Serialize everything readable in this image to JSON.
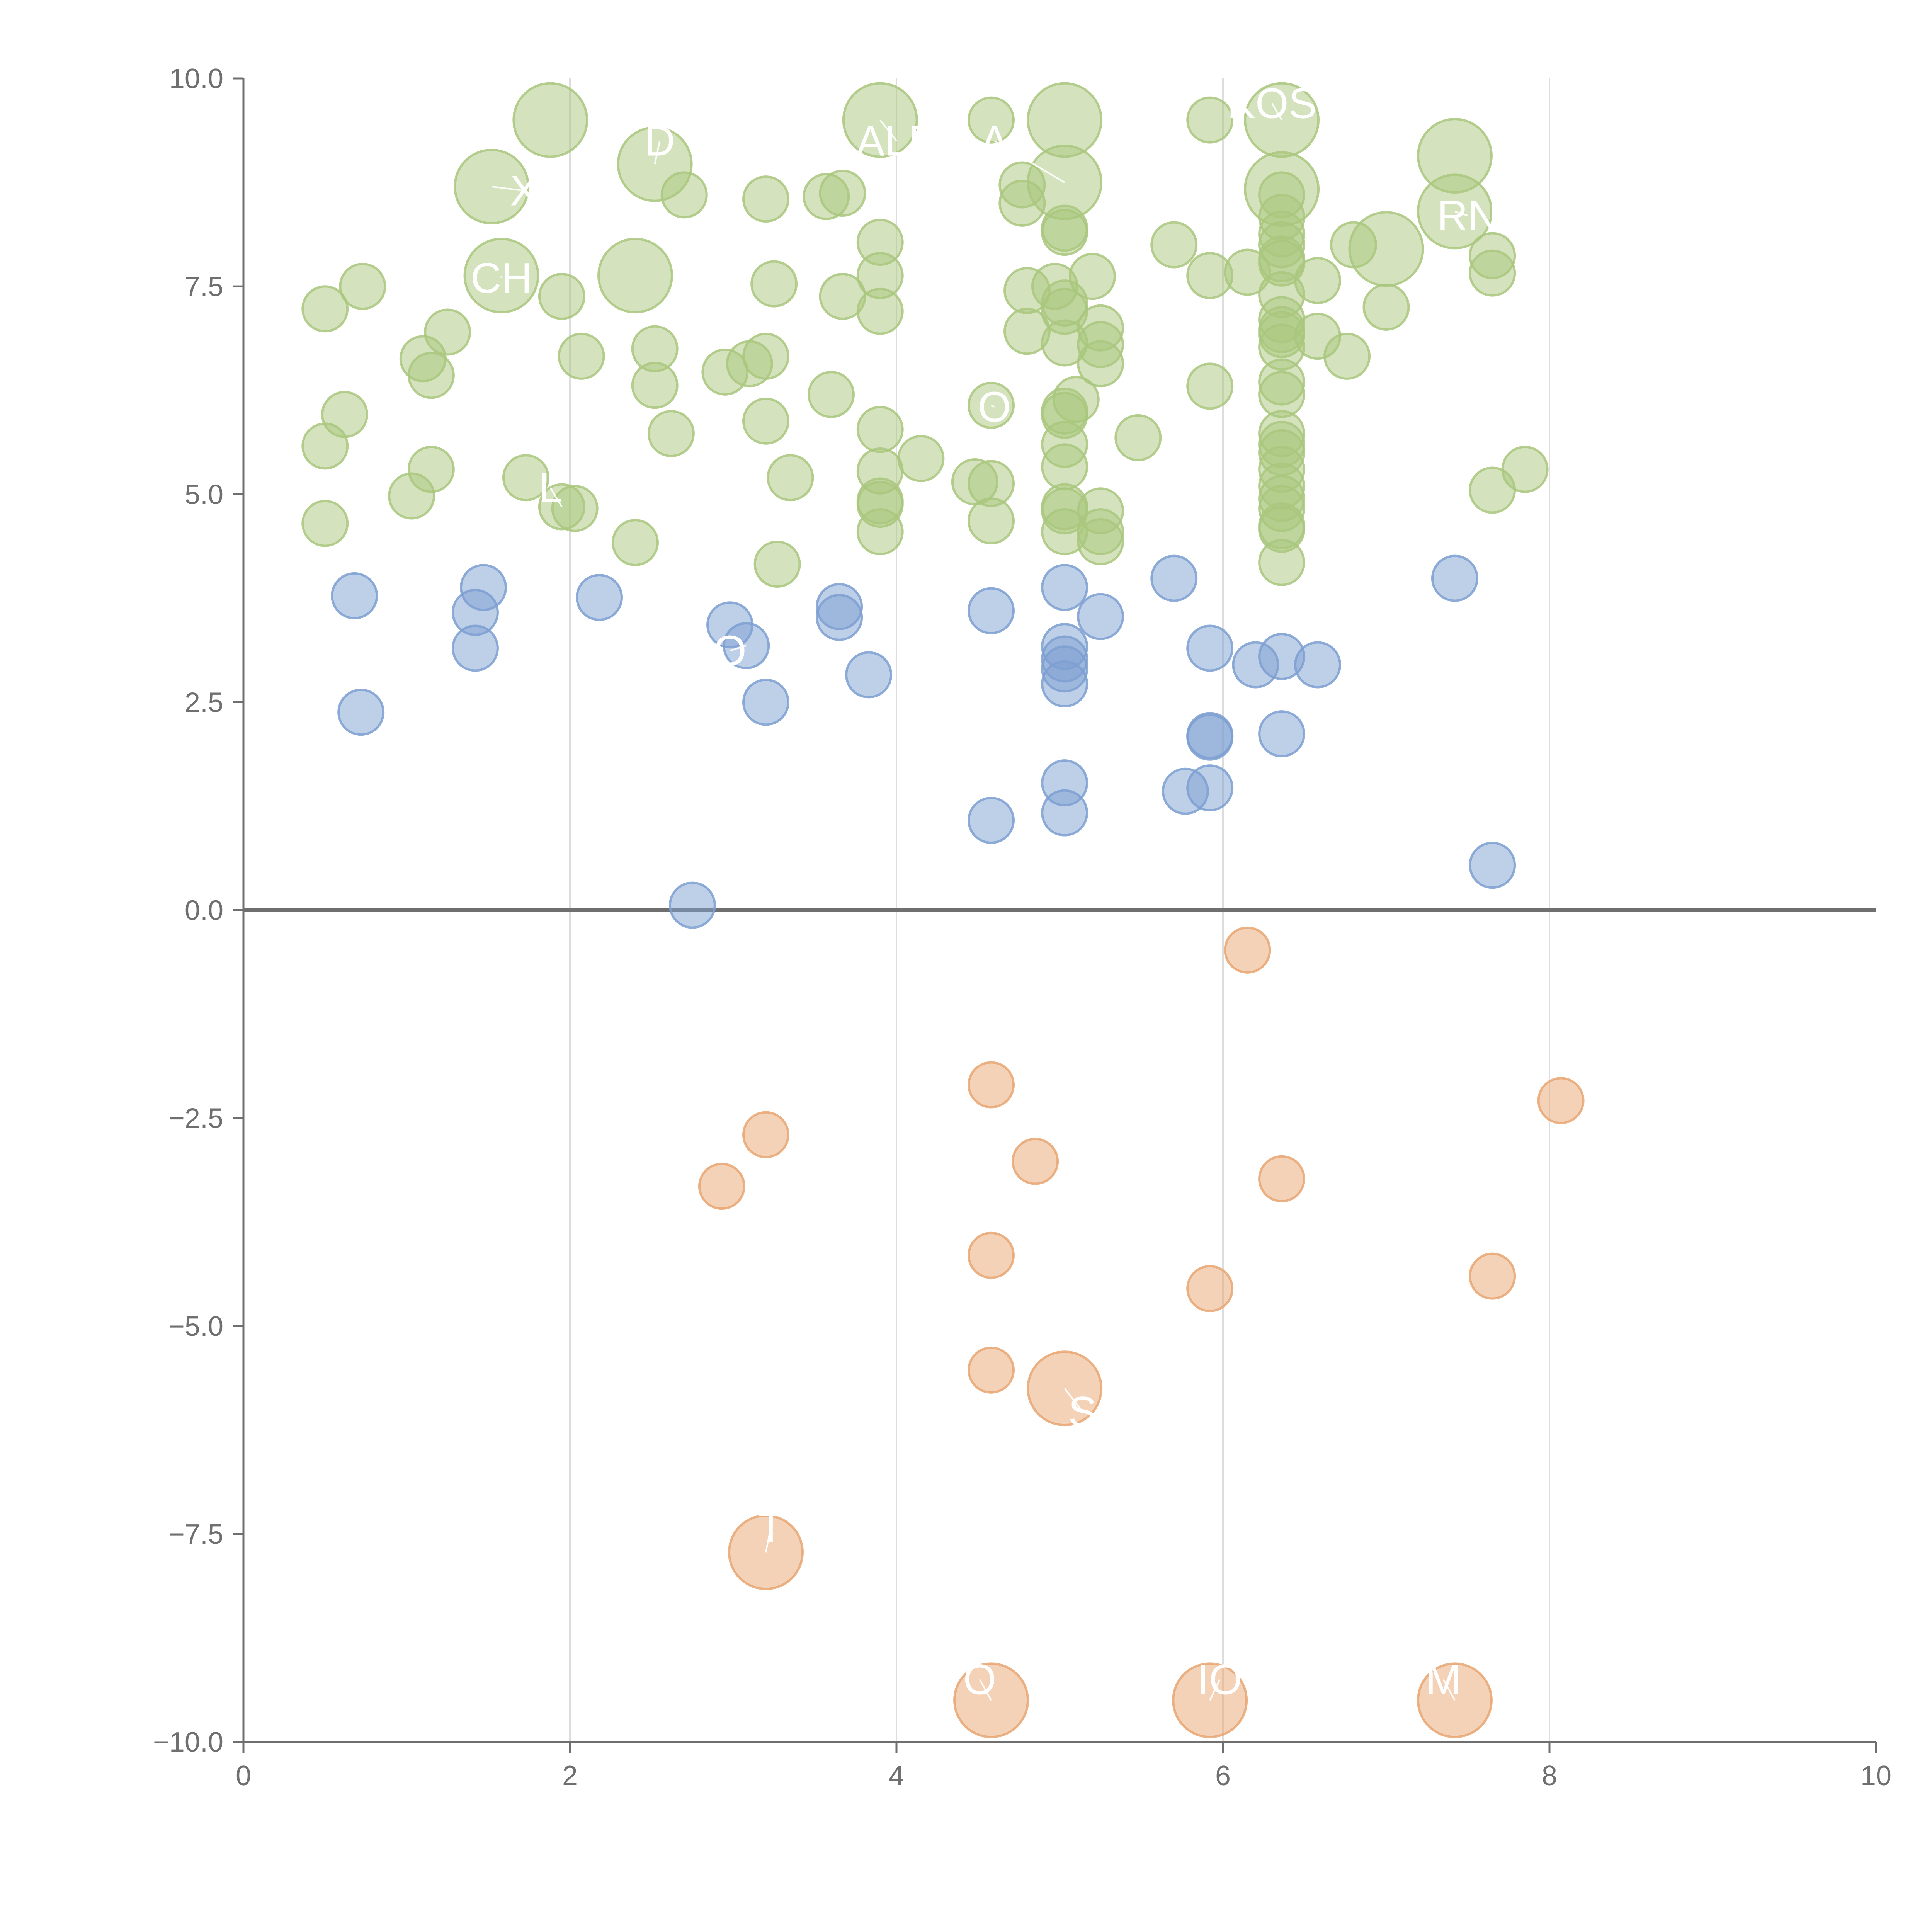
{
  "chart_data": {
    "type": "scatter",
    "title": "",
    "xlabel": "",
    "ylabel": "",
    "xlim": [
      0,
      10
    ],
    "ylim": [
      -10,
      10
    ],
    "x_ticks": [
      0,
      2,
      4,
      6,
      8,
      10
    ],
    "x_tick_labels": [
      "0",
      "2",
      "4",
      "6",
      "8",
      "10"
    ],
    "y_ticks": [
      10,
      7.5,
      5,
      2.5,
      0,
      -2.5,
      -5,
      -7.5,
      -10
    ],
    "y_tick_labels": [
      "10.0",
      "7.5",
      "5.0",
      "2.5",
      "0.0",
      "−2.5",
      "−5.0",
      "−7.5",
      "−10.0"
    ],
    "grid": {
      "vertical": true,
      "horizontal": false
    },
    "zero_line": true,
    "legend": "none",
    "colors": {
      "green": "#a9c77e",
      "blue": "#7d9fd1",
      "orange": "#e8a671",
      "axis": "#6f6f6f",
      "grid": "#dddddd",
      "label": "#ffffff"
    },
    "series": [
      {
        "color_key": "green",
        "points": [
          [
            1.88,
            9.5,
            2
          ],
          [
            3.9,
            9.5,
            2
          ],
          [
            4.58,
            9.5,
            0
          ],
          [
            5.03,
            9.5,
            2
          ],
          [
            5.92,
            9.5,
            0
          ],
          [
            6.36,
            9.5,
            2
          ],
          [
            2.52,
            8.97,
            2
          ],
          [
            1.52,
            8.7,
            2
          ],
          [
            5.03,
            8.75,
            2
          ],
          [
            7.42,
            9.07,
            2
          ],
          [
            6.36,
            8.67,
            2
          ],
          [
            6.36,
            8.6,
            0
          ],
          [
            2.7,
            8.6,
            0
          ],
          [
            3.2,
            8.55,
            0
          ],
          [
            3.57,
            8.58,
            0
          ],
          [
            3.67,
            8.62,
            0
          ],
          [
            4.77,
            8.72,
            0
          ],
          [
            4.77,
            8.5,
            0
          ],
          [
            6.36,
            8.33,
            0
          ],
          [
            5.03,
            8.2,
            0
          ],
          [
            5.03,
            8.15,
            0
          ],
          [
            6.36,
            8.13,
            0
          ],
          [
            6.36,
            8.0,
            0
          ],
          [
            3.9,
            8.03,
            0
          ],
          [
            5.7,
            8.0,
            0
          ],
          [
            6.36,
            7.83,
            0
          ],
          [
            6.36,
            7.78,
            0
          ],
          [
            6.8,
            8.0,
            0
          ],
          [
            7.0,
            7.95,
            2
          ],
          [
            7.42,
            8.4,
            2
          ],
          [
            7.65,
            7.87,
            0
          ],
          [
            7.65,
            7.66,
            0
          ],
          [
            1.58,
            7.63,
            2
          ],
          [
            2.4,
            7.63,
            2
          ],
          [
            0.5,
            7.23,
            0
          ],
          [
            0.73,
            7.5,
            0
          ],
          [
            1.95,
            7.38,
            0
          ],
          [
            3.25,
            7.53,
            0
          ],
          [
            3.67,
            7.38,
            0
          ],
          [
            3.9,
            7.63,
            0
          ],
          [
            3.9,
            7.2,
            0
          ],
          [
            4.8,
            7.45,
            0
          ],
          [
            4.97,
            7.5,
            0
          ],
          [
            5.03,
            7.3,
            0
          ],
          [
            5.03,
            7.2,
            0
          ],
          [
            5.2,
            7.62,
            0
          ],
          [
            5.92,
            7.63,
            0
          ],
          [
            6.15,
            7.67,
            0
          ],
          [
            6.36,
            7.4,
            0
          ],
          [
            6.36,
            7.1,
            0
          ],
          [
            6.36,
            6.98,
            0
          ],
          [
            6.36,
            6.92,
            0
          ],
          [
            6.58,
            7.57,
            0
          ],
          [
            7.0,
            7.25,
            0
          ],
          [
            1.25,
            6.95,
            0
          ],
          [
            0.62,
            5.96,
            0
          ],
          [
            1.1,
            6.63,
            0
          ],
          [
            1.15,
            6.43,
            0
          ],
          [
            2.07,
            6.66,
            0
          ],
          [
            2.52,
            6.75,
            0
          ],
          [
            2.52,
            6.31,
            0
          ],
          [
            2.95,
            6.47,
            0
          ],
          [
            3.1,
            6.57,
            0
          ],
          [
            3.2,
            6.66,
            0
          ],
          [
            3.6,
            6.2,
            0
          ],
          [
            4.8,
            6.96,
            0
          ],
          [
            5.03,
            6.82,
            0
          ],
          [
            5.25,
            7.0,
            0
          ],
          [
            5.25,
            6.8,
            0
          ],
          [
            5.25,
            6.57,
            0
          ],
          [
            6.36,
            6.77,
            0
          ],
          [
            6.58,
            6.9,
            0
          ],
          [
            6.76,
            6.66,
            0
          ],
          [
            5.92,
            6.3,
            0
          ],
          [
            6.36,
            6.35,
            0
          ],
          [
            6.36,
            6.2,
            0
          ],
          [
            4.58,
            6.07,
            0
          ],
          [
            5.1,
            6.14,
            0
          ],
          [
            5.03,
            6.0,
            0
          ],
          [
            5.03,
            5.95,
            0
          ],
          [
            0.5,
            5.58,
            0
          ],
          [
            1.15,
            5.3,
            0
          ],
          [
            2.62,
            5.73,
            0
          ],
          [
            3.2,
            5.88,
            0
          ],
          [
            3.9,
            5.78,
            0
          ],
          [
            5.03,
            5.6,
            0
          ],
          [
            5.48,
            5.68,
            0
          ],
          [
            6.36,
            5.73,
            0
          ],
          [
            6.36,
            5.6,
            0
          ],
          [
            6.36,
            5.5,
            0
          ],
          [
            1.73,
            5.2,
            0
          ],
          [
            1.03,
            4.98,
            0
          ],
          [
            3.35,
            5.2,
            0
          ],
          [
            3.9,
            5.28,
            0
          ],
          [
            4.15,
            5.43,
            0
          ],
          [
            4.48,
            5.15,
            0
          ],
          [
            4.58,
            5.13,
            0
          ],
          [
            5.03,
            5.33,
            0
          ],
          [
            6.36,
            5.3,
            0
          ],
          [
            6.36,
            5.1,
            0
          ],
          [
            6.36,
            4.95,
            0
          ],
          [
            6.36,
            4.83,
            0
          ],
          [
            7.65,
            5.05,
            0
          ],
          [
            7.85,
            5.3,
            0
          ],
          [
            0.5,
            4.65,
            0
          ],
          [
            1.95,
            4.85,
            0
          ],
          [
            2.03,
            4.83,
            0
          ],
          [
            3.9,
            4.92,
            0
          ],
          [
            3.9,
            4.88,
            0
          ],
          [
            5.03,
            4.85,
            0
          ],
          [
            5.03,
            4.8,
            0
          ],
          [
            5.25,
            4.8,
            0
          ],
          [
            4.58,
            4.68,
            0
          ],
          [
            5.03,
            4.55,
            0
          ],
          [
            5.25,
            4.55,
            0
          ],
          [
            5.25,
            4.43,
            0
          ],
          [
            6.36,
            4.62,
            0
          ],
          [
            6.36,
            4.58,
            0
          ],
          [
            2.4,
            4.42,
            0
          ],
          [
            3.9,
            4.55,
            0
          ],
          [
            3.27,
            4.16,
            0
          ],
          [
            6.36,
            4.18,
            0
          ]
        ]
      },
      {
        "color_key": "blue",
        "points": [
          [
            0.68,
            3.78,
            0
          ],
          [
            1.47,
            3.88,
            0
          ],
          [
            1.42,
            3.58,
            0
          ],
          [
            1.42,
            3.15,
            0
          ],
          [
            2.18,
            3.76,
            0
          ],
          [
            0.72,
            2.38,
            0
          ],
          [
            2.98,
            3.43,
            0
          ],
          [
            3.08,
            3.18,
            0
          ],
          [
            3.2,
            2.5,
            0
          ],
          [
            3.65,
            3.65,
            0
          ],
          [
            3.65,
            3.52,
            0
          ],
          [
            3.83,
            2.83,
            0
          ],
          [
            4.58,
            3.6,
            0
          ],
          [
            5.03,
            3.88,
            0
          ],
          [
            5.03,
            3.17,
            0
          ],
          [
            5.03,
            3.02,
            0
          ],
          [
            5.03,
            2.9,
            0
          ],
          [
            5.03,
            2.72,
            0
          ],
          [
            5.03,
            1.53,
            0
          ],
          [
            5.03,
            1.17,
            0
          ],
          [
            5.25,
            3.53,
            0
          ],
          [
            5.7,
            3.99,
            0
          ],
          [
            5.92,
            3.15,
            0
          ],
          [
            5.92,
            2.1,
            0
          ],
          [
            5.92,
            2.08,
            0
          ],
          [
            5.92,
            1.47,
            0
          ],
          [
            5.77,
            1.43,
            0
          ],
          [
            6.2,
            2.95,
            0
          ],
          [
            6.36,
            3.05,
            0
          ],
          [
            6.36,
            2.12,
            0
          ],
          [
            6.58,
            2.95,
            0
          ],
          [
            4.58,
            1.08,
            0
          ],
          [
            7.42,
            3.99,
            0
          ],
          [
            7.65,
            0.54,
            0
          ],
          [
            2.75,
            0.06,
            0
          ]
        ]
      },
      {
        "color_key": "orange",
        "points": [
          [
            6.15,
            -0.48,
            0
          ],
          [
            4.58,
            -2.1,
            0
          ],
          [
            3.2,
            -2.7,
            0
          ],
          [
            2.93,
            -3.32,
            0
          ],
          [
            4.85,
            -3.02,
            0
          ],
          [
            6.36,
            -3.23,
            0
          ],
          [
            8.07,
            -2.29,
            0
          ],
          [
            4.58,
            -4.15,
            0
          ],
          [
            5.92,
            -4.55,
            0
          ],
          [
            7.65,
            -4.4,
            0
          ],
          [
            4.58,
            -5.53,
            0
          ],
          [
            5.03,
            -5.75,
            2
          ],
          [
            3.2,
            -7.72,
            2
          ],
          [
            4.58,
            -9.5,
            2
          ],
          [
            5.92,
            -9.5,
            2
          ],
          [
            7.42,
            -9.5,
            2
          ]
        ]
      }
    ],
    "labels": [
      {
        "text": "KOS",
        "x": 6.3,
        "y": 9.7,
        "lx": 6.36,
        "ly": 9.5
      },
      {
        "text": "D",
        "x": 2.55,
        "y": 9.25,
        "lx": 2.52,
        "ly": 8.97
      },
      {
        "text": "ALB",
        "x": 4.0,
        "y": 9.25,
        "lx": 3.9,
        "ly": 9.5
      },
      {
        "text": "A",
        "x": 4.6,
        "y": 9.25,
        "lx": 5.03,
        "ly": 8.75
      },
      {
        "text": "X",
        "x": 1.72,
        "y": 8.65,
        "lx": 1.52,
        "ly": 8.7
      },
      {
        "text": "RN",
        "x": 7.5,
        "y": 8.35,
        "lx": 7.42,
        "ly": 8.4
      },
      {
        "text": "CH",
        "x": 1.58,
        "y": 7.6,
        "lx": 1.58,
        "ly": 7.63
      },
      {
        "text": "O",
        "x": 4.6,
        "y": 6.05,
        "lx": 4.58,
        "ly": 6.07
      },
      {
        "text": "L",
        "x": 1.88,
        "y": 5.08,
        "lx": 1.95,
        "ly": 4.85
      },
      {
        "text": "O",
        "x": 2.98,
        "y": 3.12,
        "lx": 3.08,
        "ly": 3.18
      },
      {
        "text": "S",
        "x": 5.14,
        "y": -6.03,
        "lx": 5.03,
        "ly": -5.75
      },
      {
        "text": "T",
        "x": 3.23,
        "y": -7.42,
        "lx": 3.2,
        "ly": -7.72
      },
      {
        "text": "O",
        "x": 4.51,
        "y": -9.25,
        "lx": 4.58,
        "ly": -9.5
      },
      {
        "text": "IO",
        "x": 5.98,
        "y": -9.25,
        "lx": 5.92,
        "ly": -9.5
      },
      {
        "text": "M",
        "x": 7.35,
        "y": -9.25,
        "lx": 7.42,
        "ly": -9.5
      }
    ]
  }
}
